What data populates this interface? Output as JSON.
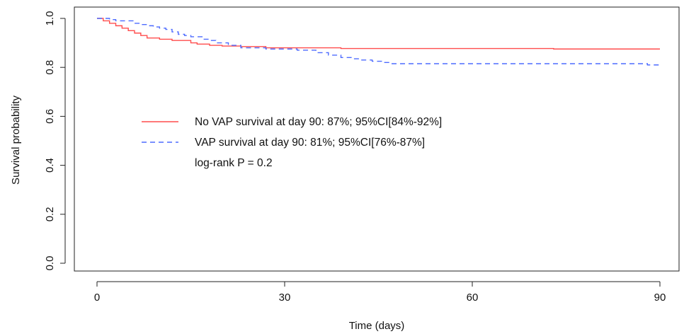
{
  "chart_data": {
    "type": "line",
    "xlabel": "Time (days)",
    "ylabel": "Survival probability",
    "xlim": [
      0,
      90
    ],
    "ylim": [
      0,
      1
    ],
    "xticks": [
      0,
      30,
      60,
      90
    ],
    "yticks": [
      0.0,
      0.2,
      0.4,
      0.6,
      0.8,
      1.0
    ],
    "xtick_labels": [
      "0",
      "30",
      "60",
      "90"
    ],
    "ytick_labels": [
      "0.0",
      "0.2",
      "0.4",
      "0.6",
      "0.8",
      "1.0"
    ],
    "grid": false,
    "legend_placement": "center-left",
    "series": [
      {
        "name": "No VAP survival at day 90: 87%; 95%CI[84%-92%]",
        "color": "#ff4d4d",
        "style": "solid",
        "step": true,
        "x": [
          0,
          1,
          2,
          3,
          4,
          5,
          6,
          7,
          8,
          10,
          12,
          15,
          16,
          18,
          20,
          23,
          27,
          39,
          73,
          90
        ],
        "y": [
          1.0,
          0.99,
          0.98,
          0.97,
          0.96,
          0.95,
          0.94,
          0.93,
          0.92,
          0.915,
          0.91,
          0.9,
          0.895,
          0.89,
          0.887,
          0.885,
          0.88,
          0.877,
          0.875,
          0.875
        ]
      },
      {
        "name": "VAP survival at day 90: 81%; 95%CI[76%-87%]",
        "color": "#4d6bff",
        "style": "dashed",
        "step": true,
        "x": [
          0,
          2,
          3,
          6,
          7,
          8,
          9,
          10,
          11,
          12,
          13,
          14,
          15,
          17,
          18,
          19,
          21,
          23,
          27,
          32,
          35,
          37,
          39,
          41,
          42,
          44,
          46,
          47,
          88,
          90
        ],
        "y": [
          1.0,
          0.995,
          0.99,
          0.98,
          0.975,
          0.97,
          0.965,
          0.96,
          0.955,
          0.945,
          0.935,
          0.93,
          0.925,
          0.915,
          0.91,
          0.9,
          0.89,
          0.88,
          0.875,
          0.87,
          0.86,
          0.85,
          0.84,
          0.835,
          0.83,
          0.825,
          0.82,
          0.815,
          0.81,
          0.81
        ]
      }
    ],
    "annotation": "log-rank P = 0.2"
  }
}
